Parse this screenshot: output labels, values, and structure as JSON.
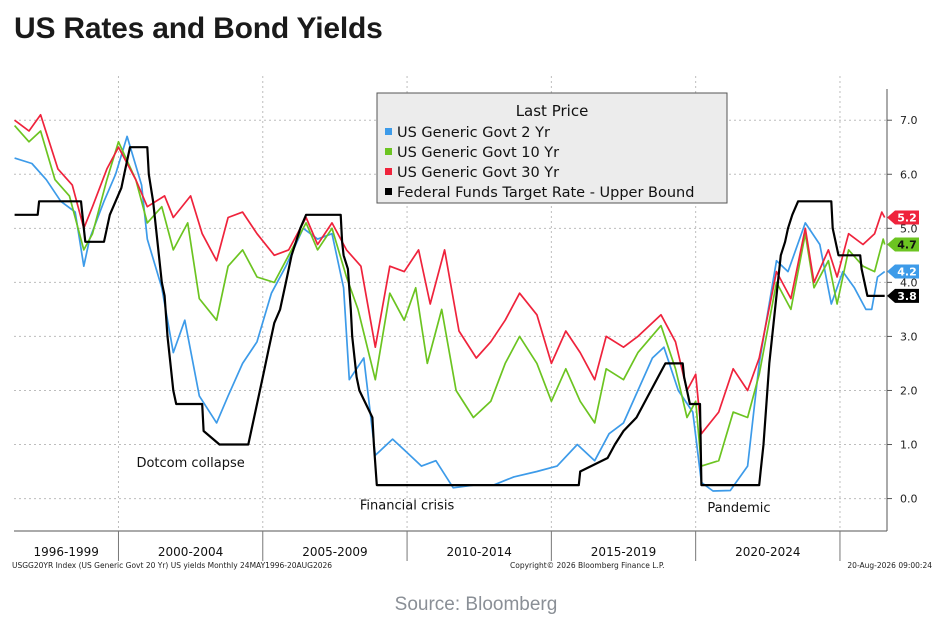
{
  "page": {
    "title": "US Rates and Bond Yields",
    "source": "Source: Bloomberg"
  },
  "chart_data": {
    "type": "line",
    "legend_title": "Last Price",
    "legend_position": "top-center",
    "grid": true,
    "x_range": [
      1996.38,
      2026.63
    ],
    "ylim": [
      -0.6,
      7.3
    ],
    "y_ticks": [
      0.0,
      1.0,
      2.0,
      3.0,
      4.0,
      5.0,
      6.0,
      7.0
    ],
    "y_tick_labels": [
      "0.0",
      "1.0",
      "2.0",
      "3.0",
      "4.0",
      "5.0",
      "6.0",
      "7.0"
    ],
    "x_period_labels": [
      {
        "label": "1996-1999",
        "start": 1996.38,
        "end": 2000.0
      },
      {
        "label": "2000-2004",
        "start": 2000.0,
        "end": 2005.0
      },
      {
        "label": "2005-2009",
        "start": 2005.0,
        "end": 2010.0
      },
      {
        "label": "2010-2014",
        "start": 2010.0,
        "end": 2015.0
      },
      {
        "label": "2015-2019",
        "start": 2015.0,
        "end": 2020.0
      },
      {
        "label": "2020-2024",
        "start": 2020.0,
        "end": 2025.0
      }
    ],
    "footer_left": "USGG20YR Index (US Generic Govt 20 Yr) US yields Monthly 24MAY1996-20AUG2026",
    "footer_center": "Copyright© 2026 Bloomberg Finance L.P.",
    "footer_right": "20-Aug-2026 09:00:24",
    "annotations": [
      {
        "text": "Dotcom collapse",
        "x": 2002.5,
        "y": 0.58
      },
      {
        "text": "Financial crisis",
        "x": 2010.0,
        "y": -0.2
      },
      {
        "text": "Pandemic",
        "x": 2021.5,
        "y": -0.25
      }
    ],
    "series": [
      {
        "name": "US Generic Govt 2 Yr",
        "color": "#3d9be9",
        "last": 4.2,
        "label_text": "4.2",
        "points": [
          [
            1996.4,
            6.3
          ],
          [
            1997.0,
            6.2
          ],
          [
            1997.5,
            5.9
          ],
          [
            1998.0,
            5.5
          ],
          [
            1998.5,
            5.3
          ],
          [
            1998.8,
            4.3
          ],
          [
            1999.0,
            4.8
          ],
          [
            1999.5,
            5.5
          ],
          [
            1999.9,
            6.0
          ],
          [
            2000.3,
            6.7
          ],
          [
            2000.8,
            5.8
          ],
          [
            2001.0,
            4.8
          ],
          [
            2001.5,
            3.9
          ],
          [
            2001.9,
            2.7
          ],
          [
            2002.3,
            3.3
          ],
          [
            2002.8,
            1.9
          ],
          [
            2003.4,
            1.4
          ],
          [
            2003.8,
            1.9
          ],
          [
            2004.3,
            2.5
          ],
          [
            2004.8,
            2.9
          ],
          [
            2005.3,
            3.8
          ],
          [
            2005.8,
            4.3
          ],
          [
            2006.4,
            5.0
          ],
          [
            2006.9,
            4.8
          ],
          [
            2007.4,
            4.9
          ],
          [
            2007.8,
            3.9
          ],
          [
            2008.0,
            2.2
          ],
          [
            2008.5,
            2.6
          ],
          [
            2008.9,
            0.8
          ],
          [
            2009.5,
            1.1
          ],
          [
            2009.9,
            0.9
          ],
          [
            2010.5,
            0.6
          ],
          [
            2011.0,
            0.7
          ],
          [
            2011.6,
            0.2
          ],
          [
            2012.3,
            0.25
          ],
          [
            2013.0,
            0.25
          ],
          [
            2013.7,
            0.4
          ],
          [
            2014.5,
            0.5
          ],
          [
            2015.2,
            0.6
          ],
          [
            2015.9,
            1.0
          ],
          [
            2016.5,
            0.7
          ],
          [
            2017.0,
            1.2
          ],
          [
            2017.5,
            1.4
          ],
          [
            2018.0,
            2.0
          ],
          [
            2018.5,
            2.6
          ],
          [
            2018.9,
            2.8
          ],
          [
            2019.4,
            2.0
          ],
          [
            2019.9,
            1.6
          ],
          [
            2020.2,
            0.3
          ],
          [
            2020.6,
            0.14
          ],
          [
            2021.2,
            0.15
          ],
          [
            2021.8,
            0.6
          ],
          [
            2022.2,
            2.5
          ],
          [
            2022.8,
            4.4
          ],
          [
            2023.2,
            4.2
          ],
          [
            2023.8,
            5.1
          ],
          [
            2024.3,
            4.7
          ],
          [
            2024.7,
            3.6
          ],
          [
            2025.1,
            4.2
          ],
          [
            2025.5,
            3.9
          ],
          [
            2025.9,
            3.5
          ],
          [
            2026.1,
            3.5
          ],
          [
            2026.3,
            4.1
          ],
          [
            2026.55,
            4.2
          ]
        ]
      },
      {
        "name": "US Generic Govt 10 Yr",
        "color": "#6cc421",
        "last": 4.7,
        "label_text": "4.7",
        "points": [
          [
            1996.4,
            6.9
          ],
          [
            1996.9,
            6.6
          ],
          [
            1997.3,
            6.8
          ],
          [
            1997.8,
            5.9
          ],
          [
            1998.3,
            5.6
          ],
          [
            1998.8,
            4.6
          ],
          [
            1999.1,
            4.9
          ],
          [
            1999.6,
            5.9
          ],
          [
            2000.0,
            6.6
          ],
          [
            2000.6,
            5.9
          ],
          [
            2001.0,
            5.1
          ],
          [
            2001.5,
            5.4
          ],
          [
            2001.9,
            4.6
          ],
          [
            2002.4,
            5.1
          ],
          [
            2002.8,
            3.7
          ],
          [
            2003.4,
            3.3
          ],
          [
            2003.8,
            4.3
          ],
          [
            2004.3,
            4.6
          ],
          [
            2004.8,
            4.1
          ],
          [
            2005.4,
            4.0
          ],
          [
            2005.9,
            4.5
          ],
          [
            2006.5,
            5.1
          ],
          [
            2006.9,
            4.6
          ],
          [
            2007.4,
            5.0
          ],
          [
            2007.9,
            4.1
          ],
          [
            2008.3,
            3.5
          ],
          [
            2008.9,
            2.2
          ],
          [
            2009.4,
            3.8
          ],
          [
            2009.9,
            3.3
          ],
          [
            2010.3,
            3.9
          ],
          [
            2010.7,
            2.5
          ],
          [
            2011.2,
            3.5
          ],
          [
            2011.7,
            2.0
          ],
          [
            2012.3,
            1.5
          ],
          [
            2012.9,
            1.8
          ],
          [
            2013.4,
            2.5
          ],
          [
            2013.9,
            3.0
          ],
          [
            2014.5,
            2.5
          ],
          [
            2015.0,
            1.8
          ],
          [
            2015.5,
            2.4
          ],
          [
            2016.0,
            1.8
          ],
          [
            2016.5,
            1.4
          ],
          [
            2016.9,
            2.4
          ],
          [
            2017.5,
            2.2
          ],
          [
            2018.0,
            2.7
          ],
          [
            2018.8,
            3.2
          ],
          [
            2019.3,
            2.4
          ],
          [
            2019.7,
            1.5
          ],
          [
            2020.0,
            1.8
          ],
          [
            2020.2,
            0.6
          ],
          [
            2020.8,
            0.7
          ],
          [
            2021.3,
            1.6
          ],
          [
            2021.8,
            1.5
          ],
          [
            2022.2,
            2.3
          ],
          [
            2022.8,
            4.0
          ],
          [
            2023.3,
            3.5
          ],
          [
            2023.8,
            4.9
          ],
          [
            2024.1,
            3.9
          ],
          [
            2024.6,
            4.4
          ],
          [
            2024.9,
            3.6
          ],
          [
            2025.3,
            4.6
          ],
          [
            2025.8,
            4.3
          ],
          [
            2026.2,
            4.2
          ],
          [
            2026.5,
            4.8
          ],
          [
            2026.55,
            4.7
          ]
        ]
      },
      {
        "name": "US Generic Govt 30 Yr",
        "color": "#ef233c",
        "last": 5.2,
        "label_text": "5.2",
        "points": [
          [
            1996.4,
            7.0
          ],
          [
            1996.9,
            6.8
          ],
          [
            1997.3,
            7.1
          ],
          [
            1997.9,
            6.1
          ],
          [
            1998.4,
            5.8
          ],
          [
            1998.8,
            5.0
          ],
          [
            1999.1,
            5.4
          ],
          [
            1999.6,
            6.1
          ],
          [
            2000.0,
            6.5
          ],
          [
            2000.6,
            5.9
          ],
          [
            2001.0,
            5.4
          ],
          [
            2001.6,
            5.6
          ],
          [
            2001.9,
            5.2
          ],
          [
            2002.5,
            5.6
          ],
          [
            2002.9,
            4.9
          ],
          [
            2003.4,
            4.4
          ],
          [
            2003.8,
            5.2
          ],
          [
            2004.3,
            5.3
          ],
          [
            2004.8,
            4.9
          ],
          [
            2005.4,
            4.5
          ],
          [
            2005.9,
            4.6
          ],
          [
            2006.5,
            5.2
          ],
          [
            2006.9,
            4.7
          ],
          [
            2007.4,
            5.1
          ],
          [
            2007.9,
            4.6
          ],
          [
            2008.4,
            4.3
          ],
          [
            2008.9,
            2.8
          ],
          [
            2009.4,
            4.3
          ],
          [
            2009.9,
            4.2
          ],
          [
            2010.4,
            4.6
          ],
          [
            2010.8,
            3.6
          ],
          [
            2011.3,
            4.6
          ],
          [
            2011.8,
            3.1
          ],
          [
            2012.4,
            2.6
          ],
          [
            2012.9,
            2.9
          ],
          [
            2013.4,
            3.3
          ],
          [
            2013.9,
            3.8
          ],
          [
            2014.5,
            3.4
          ],
          [
            2015.0,
            2.5
          ],
          [
            2015.5,
            3.1
          ],
          [
            2016.0,
            2.7
          ],
          [
            2016.5,
            2.2
          ],
          [
            2016.9,
            3.0
          ],
          [
            2017.5,
            2.8
          ],
          [
            2018.0,
            3.0
          ],
          [
            2018.8,
            3.4
          ],
          [
            2019.3,
            2.9
          ],
          [
            2019.7,
            2.0
          ],
          [
            2020.0,
            2.3
          ],
          [
            2020.2,
            1.2
          ],
          [
            2020.8,
            1.6
          ],
          [
            2021.3,
            2.4
          ],
          [
            2021.8,
            2.0
          ],
          [
            2022.2,
            2.6
          ],
          [
            2022.8,
            4.2
          ],
          [
            2023.3,
            3.7
          ],
          [
            2023.8,
            5.0
          ],
          [
            2024.1,
            4.0
          ],
          [
            2024.6,
            4.6
          ],
          [
            2024.9,
            4.1
          ],
          [
            2025.3,
            4.9
          ],
          [
            2025.8,
            4.7
          ],
          [
            2026.2,
            4.9
          ],
          [
            2026.45,
            5.3
          ],
          [
            2026.55,
            5.2
          ]
        ]
      },
      {
        "name": "Federal Funds Target Rate - Upper Bound",
        "color": "#000000",
        "last": 3.75,
        "label_text": "3.8",
        "points": [
          [
            1996.4,
            5.25
          ],
          [
            1997.2,
            5.25
          ],
          [
            1997.25,
            5.5
          ],
          [
            1998.7,
            5.5
          ],
          [
            1998.8,
            5.0
          ],
          [
            1998.85,
            4.75
          ],
          [
            1999.5,
            4.75
          ],
          [
            1999.6,
            5.0
          ],
          [
            1999.7,
            5.25
          ],
          [
            1999.9,
            5.5
          ],
          [
            2000.1,
            5.75
          ],
          [
            2000.2,
            6.0
          ],
          [
            2000.4,
            6.5
          ],
          [
            2001.0,
            6.5
          ],
          [
            2001.05,
            6.0
          ],
          [
            2001.2,
            5.5
          ],
          [
            2001.3,
            5.0
          ],
          [
            2001.4,
            4.5
          ],
          [
            2001.5,
            4.0
          ],
          [
            2001.6,
            3.75
          ],
          [
            2001.7,
            3.0
          ],
          [
            2001.8,
            2.5
          ],
          [
            2001.9,
            2.0
          ],
          [
            2002.0,
            1.75
          ],
          [
            2002.9,
            1.75
          ],
          [
            2002.95,
            1.25
          ],
          [
            2003.5,
            1.0
          ],
          [
            2004.5,
            1.0
          ],
          [
            2004.6,
            1.25
          ],
          [
            2004.7,
            1.5
          ],
          [
            2004.8,
            1.75
          ],
          [
            2004.9,
            2.0
          ],
          [
            2005.0,
            2.25
          ],
          [
            2005.2,
            2.75
          ],
          [
            2005.4,
            3.25
          ],
          [
            2005.6,
            3.5
          ],
          [
            2005.8,
            4.0
          ],
          [
            2006.0,
            4.5
          ],
          [
            2006.3,
            5.0
          ],
          [
            2006.5,
            5.25
          ],
          [
            2007.7,
            5.25
          ],
          [
            2007.75,
            4.75
          ],
          [
            2007.8,
            4.5
          ],
          [
            2007.95,
            4.25
          ],
          [
            2008.05,
            3.5
          ],
          [
            2008.1,
            3.0
          ],
          [
            2008.25,
            2.25
          ],
          [
            2008.35,
            2.0
          ],
          [
            2008.8,
            1.5
          ],
          [
            2008.85,
            1.0
          ],
          [
            2008.95,
            0.25
          ],
          [
            2015.95,
            0.25
          ],
          [
            2016.0,
            0.5
          ],
          [
            2016.95,
            0.75
          ],
          [
            2017.2,
            1.0
          ],
          [
            2017.5,
            1.25
          ],
          [
            2017.95,
            1.5
          ],
          [
            2018.2,
            1.75
          ],
          [
            2018.45,
            2.0
          ],
          [
            2018.7,
            2.25
          ],
          [
            2018.95,
            2.5
          ],
          [
            2019.55,
            2.5
          ],
          [
            2019.6,
            2.25
          ],
          [
            2019.7,
            2.0
          ],
          [
            2019.8,
            1.75
          ],
          [
            2020.15,
            1.75
          ],
          [
            2020.2,
            0.25
          ],
          [
            2022.2,
            0.25
          ],
          [
            2022.25,
            0.5
          ],
          [
            2022.35,
            1.0
          ],
          [
            2022.45,
            1.75
          ],
          [
            2022.55,
            2.5
          ],
          [
            2022.7,
            3.25
          ],
          [
            2022.85,
            4.0
          ],
          [
            2022.95,
            4.5
          ],
          [
            2023.1,
            4.75
          ],
          [
            2023.2,
            5.0
          ],
          [
            2023.35,
            5.25
          ],
          [
            2023.55,
            5.5
          ],
          [
            2024.7,
            5.5
          ],
          [
            2024.75,
            5.0
          ],
          [
            2024.85,
            4.75
          ],
          [
            2024.95,
            4.5
          ],
          [
            2025.7,
            4.5
          ],
          [
            2025.75,
            4.25
          ],
          [
            2025.85,
            4.0
          ],
          [
            2025.95,
            3.75
          ],
          [
            2026.55,
            3.75
          ]
        ]
      }
    ]
  }
}
